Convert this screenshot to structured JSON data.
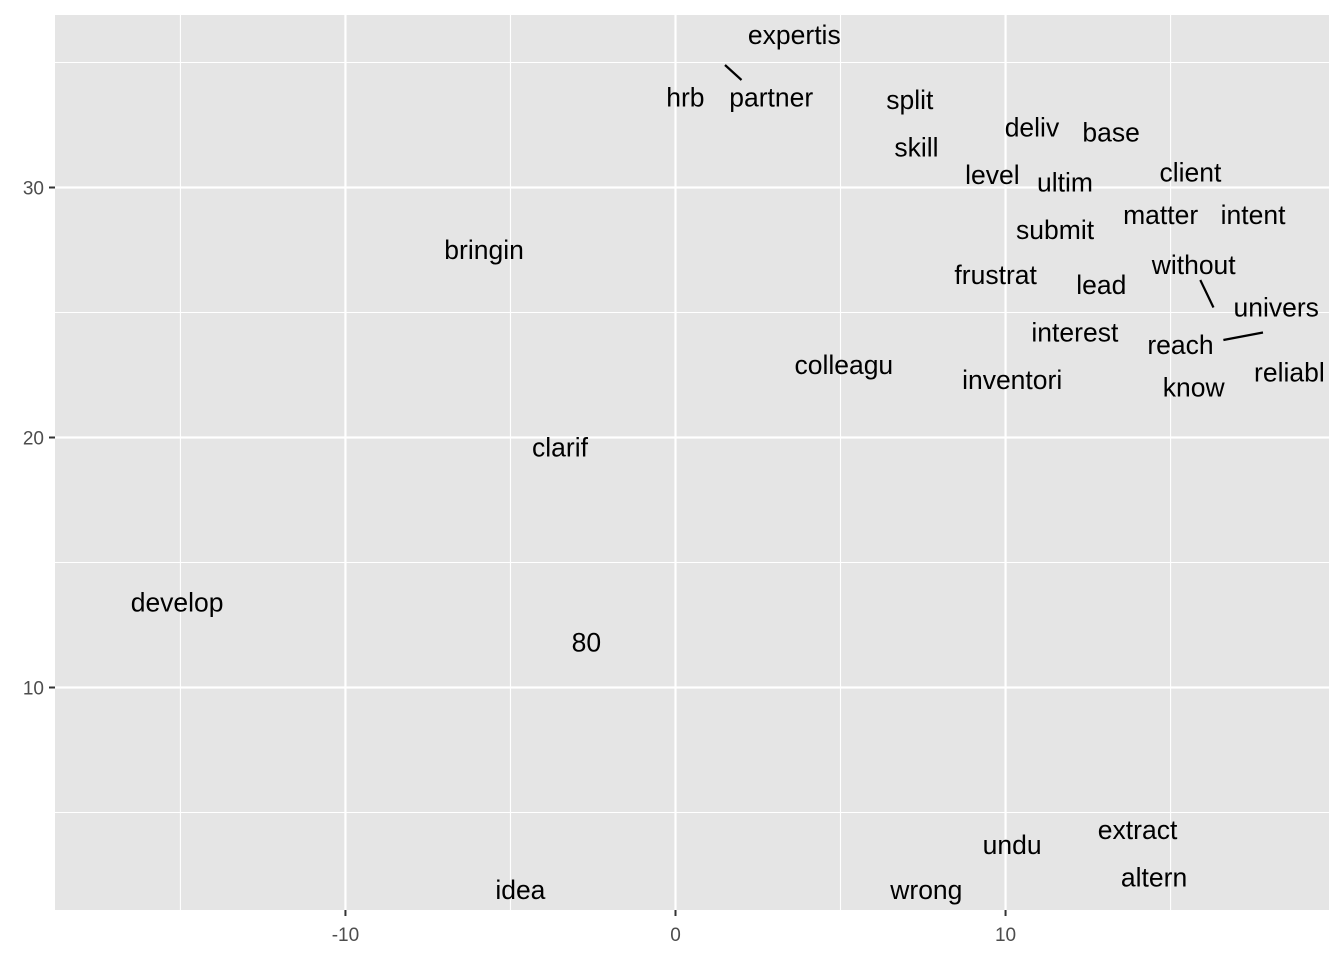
{
  "chart_data": {
    "type": "scatter",
    "title": "",
    "xlabel": "",
    "ylabel": "",
    "xlim": [
      -18.8,
      19.8
    ],
    "ylim": [
      1.1,
      36.9
    ],
    "x_ticks": [
      -10,
      0,
      10
    ],
    "y_ticks": [
      10,
      20,
      30
    ],
    "grid": true,
    "legend": "none",
    "colors": {
      "panel": "#e5e5e5",
      "grid": "#ffffff",
      "text": "#000000",
      "tick_text": "#4d4d4d"
    },
    "points": [
      {
        "label": "expertis",
        "x": 3.6,
        "y": 36.1
      },
      {
        "label": "hrb",
        "x": 0.3,
        "y": 33.6
      },
      {
        "label": "partner",
        "x": 2.9,
        "y": 33.6
      },
      {
        "label": "split",
        "x": 7.1,
        "y": 33.5
      },
      {
        "label": "deliv",
        "x": 10.8,
        "y": 32.4
      },
      {
        "label": "base",
        "x": 13.2,
        "y": 32.2
      },
      {
        "label": "skill",
        "x": 7.3,
        "y": 31.6
      },
      {
        "label": "level",
        "x": 9.6,
        "y": 30.5
      },
      {
        "label": "ultim",
        "x": 11.8,
        "y": 30.2
      },
      {
        "label": "client",
        "x": 15.6,
        "y": 30.6
      },
      {
        "label": "matter",
        "x": 14.7,
        "y": 28.9
      },
      {
        "label": "intent",
        "x": 17.5,
        "y": 28.9
      },
      {
        "label": "submit",
        "x": 11.5,
        "y": 28.3
      },
      {
        "label": "bringin",
        "x": -5.8,
        "y": 27.5
      },
      {
        "label": "without",
        "x": 15.7,
        "y": 26.9
      },
      {
        "label": "frustrat",
        "x": 9.7,
        "y": 26.5
      },
      {
        "label": "lead",
        "x": 12.9,
        "y": 26.1
      },
      {
        "label": "univers",
        "x": 18.2,
        "y": 25.2
      },
      {
        "label": "interest",
        "x": 12.1,
        "y": 24.2
      },
      {
        "label": "reach",
        "x": 15.3,
        "y": 23.7
      },
      {
        "label": "colleagu",
        "x": 5.1,
        "y": 22.9
      },
      {
        "label": "reliabl",
        "x": 18.6,
        "y": 22.6
      },
      {
        "label": "inventori",
        "x": 10.2,
        "y": 22.3
      },
      {
        "label": "know",
        "x": 15.7,
        "y": 22.0
      },
      {
        "label": "clarif",
        "x": -3.5,
        "y": 19.6
      },
      {
        "label": "develop",
        "x": -15.1,
        "y": 13.4
      },
      {
        "label": "80",
        "x": -2.7,
        "y": 11.8
      },
      {
        "label": "extract",
        "x": 14.0,
        "y": 4.3
      },
      {
        "label": "undu",
        "x": 10.2,
        "y": 3.7
      },
      {
        "label": "altern",
        "x": 14.5,
        "y": 2.4
      },
      {
        "label": "idea",
        "x": -4.7,
        "y": 1.9
      },
      {
        "label": "wrong",
        "x": 7.6,
        "y": 1.9
      }
    ],
    "leaders": [
      {
        "label": "partner",
        "from": [
          1.5,
          34.9
        ],
        "to": [
          2.0,
          34.3
        ]
      },
      {
        "label": "univers",
        "from": [
          15.9,
          26.3
        ],
        "to": [
          16.3,
          25.2
        ]
      },
      {
        "label": "reliabl",
        "from": [
          16.6,
          23.9
        ],
        "to": [
          17.8,
          24.2
        ]
      }
    ]
  }
}
